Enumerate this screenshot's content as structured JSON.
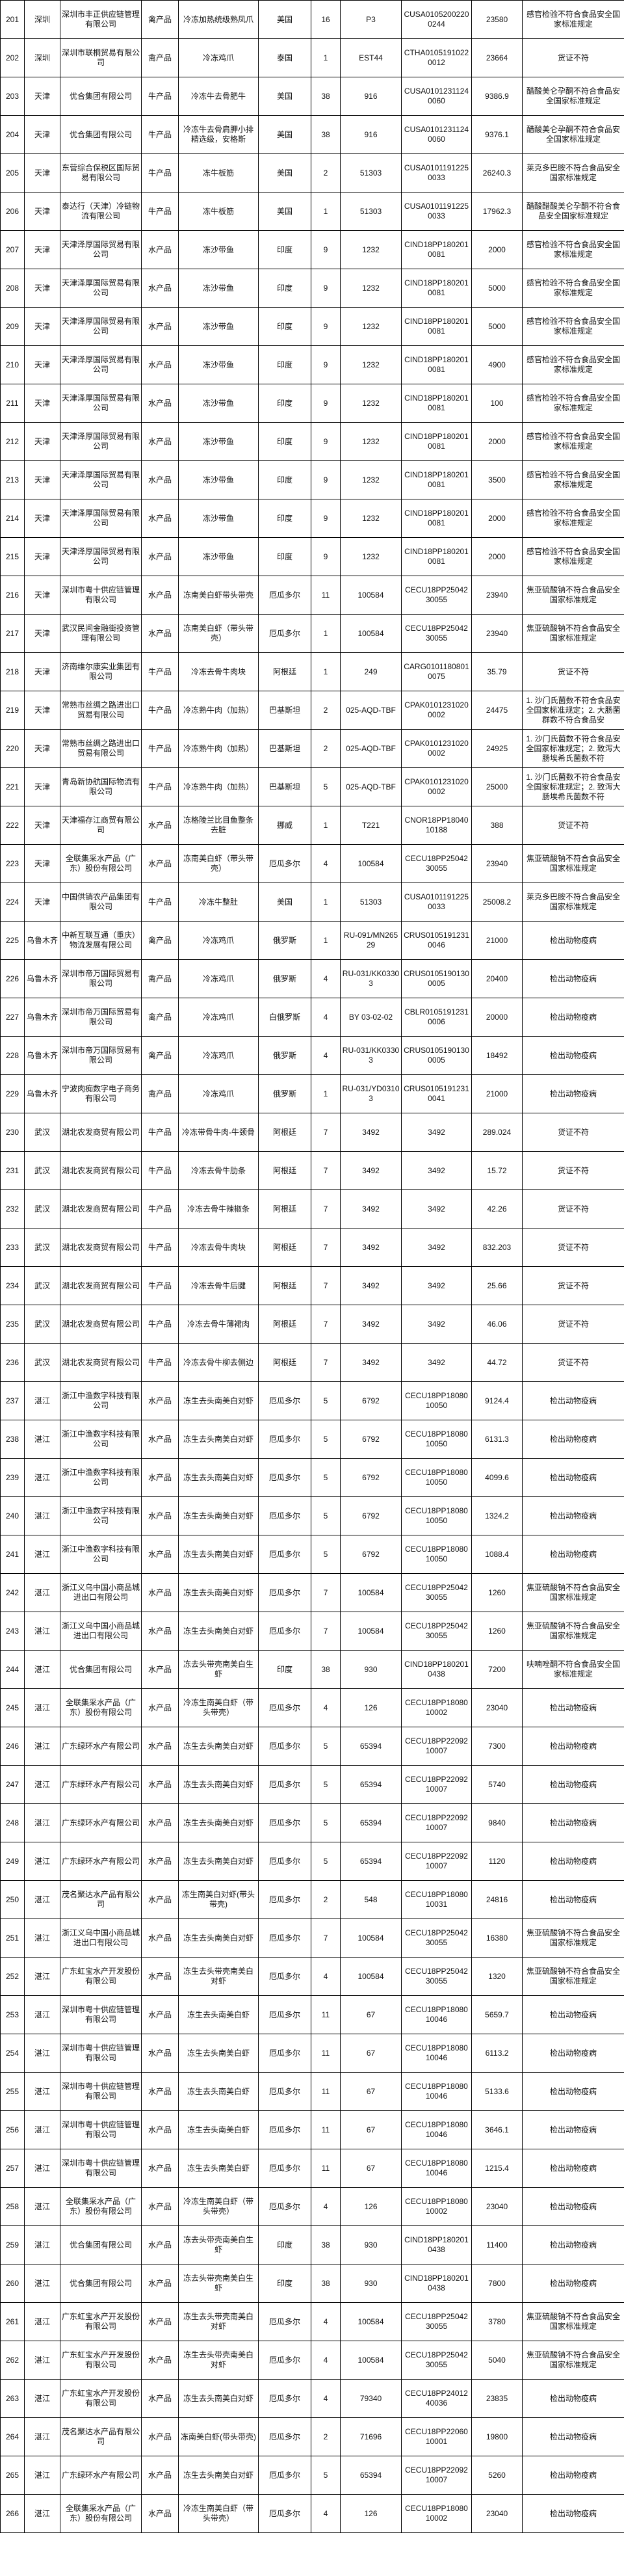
{
  "table": {
    "rows": [
      [
        "201",
        "深圳",
        "深圳市丰正供应链管理有限公司",
        "禽产品",
        "冷冻加热统级熟凤爪",
        "美国",
        "16",
        "P3",
        "CUSA01052002200244",
        "23580",
        "感官检验不符合食品安全国家标准规定"
      ],
      [
        "202",
        "深圳",
        "深圳市联桐贸易有限公司",
        "禽产品",
        "冷冻鸡爪",
        "泰国",
        "1",
        "EST44",
        "CTHA01051910220012",
        "23664",
        "货证不符"
      ],
      [
        "203",
        "天津",
        "优合集团有限公司",
        "牛产品",
        "冷冻牛去骨肥牛",
        "美国",
        "38",
        "916",
        "CUSA01012311240060",
        "9386.9",
        "醋酸美仑孕酮不符合食品安全国家标准规定"
      ],
      [
        "204",
        "天津",
        "优合集团有限公司",
        "牛产品",
        "冷冻牛去骨肩胛小排精选级，安格斯",
        "美国",
        "38",
        "916",
        "CUSA01012311240060",
        "9376.1",
        "醋酸美仑孕酮不符合食品安全国家标准规定"
      ],
      [
        "205",
        "天津",
        "东营综合保税区国际贸易有限公司",
        "牛产品",
        "冻牛板筋",
        "美国",
        "2",
        "51303",
        "CUSA01011912250033",
        "26240.3",
        "莱克多巴胺不符合食品安全国家标准规定"
      ],
      [
        "206",
        "天津",
        "泰达行（天津）冷链物流有限公司",
        "牛产品",
        "冻牛板筋",
        "美国",
        "1",
        "51303",
        "CUSA01011912250033",
        "17962.3",
        "醋酸醋酸美仑孕酮不符合食品安全国家标准规定"
      ],
      [
        "207",
        "天津",
        "天津泽厚国际贸易有限公司",
        "水产品",
        "冻沙带鱼",
        "印度",
        "9",
        "1232",
        "CIND18PP1802010081",
        "2000",
        "感官检验不符合食品安全国家标准规定"
      ],
      [
        "208",
        "天津",
        "天津泽厚国际贸易有限公司",
        "水产品",
        "冻沙带鱼",
        "印度",
        "9",
        "1232",
        "CIND18PP1802010081",
        "5000",
        "感官检验不符合食品安全国家标准规定"
      ],
      [
        "209",
        "天津",
        "天津泽厚国际贸易有限公司",
        "水产品",
        "冻沙带鱼",
        "印度",
        "9",
        "1232",
        "CIND18PP1802010081",
        "5000",
        "感官检验不符合食品安全国家标准规定"
      ],
      [
        "210",
        "天津",
        "天津泽厚国际贸易有限公司",
        "水产品",
        "冻沙带鱼",
        "印度",
        "9",
        "1232",
        "CIND18PP1802010081",
        "4900",
        "感官检验不符合食品安全国家标准规定"
      ],
      [
        "211",
        "天津",
        "天津泽厚国际贸易有限公司",
        "水产品",
        "冻沙带鱼",
        "印度",
        "9",
        "1232",
        "CIND18PP1802010081",
        "100",
        "感官检验不符合食品安全国家标准规定"
      ],
      [
        "212",
        "天津",
        "天津泽厚国际贸易有限公司",
        "水产品",
        "冻沙带鱼",
        "印度",
        "9",
        "1232",
        "CIND18PP1802010081",
        "2000",
        "感官检验不符合食品安全国家标准规定"
      ],
      [
        "213",
        "天津",
        "天津泽厚国际贸易有限公司",
        "水产品",
        "冻沙带鱼",
        "印度",
        "9",
        "1232",
        "CIND18PP1802010081",
        "3500",
        "感官检验不符合食品安全国家标准规定"
      ],
      [
        "214",
        "天津",
        "天津泽厚国际贸易有限公司",
        "水产品",
        "冻沙带鱼",
        "印度",
        "9",
        "1232",
        "CIND18PP1802010081",
        "2000",
        "感官检验不符合食品安全国家标准规定"
      ],
      [
        "215",
        "天津",
        "天津泽厚国际贸易有限公司",
        "水产品",
        "冻沙带鱼",
        "印度",
        "9",
        "1232",
        "CIND18PP1802010081",
        "2000",
        "感官检验不符合食品安全国家标准规定"
      ],
      [
        "216",
        "天津",
        "深圳市粤十供应链管理有限公司",
        "水产品",
        "冻南美白虾带头带壳",
        "厄瓜多尔",
        "11",
        "100584",
        "CECU18PP2504230055",
        "23940",
        "焦亚硫酸钠不符合食品安全国家标准规定"
      ],
      [
        "217",
        "天津",
        "武汉民间金融街投资管理有限公司",
        "水产品",
        "冻南美白虾（带头带壳）",
        "厄瓜多尔",
        "1",
        "100584",
        "CECU18PP2504230055",
        "23940",
        "焦亚硫酸钠不符合食品安全国家标准规定"
      ],
      [
        "218",
        "天津",
        "济南维尔康实业集团有限公司",
        "牛产品",
        "冷冻去骨牛肉块",
        "阿根廷",
        "1",
        "249",
        "CARG01011808010075",
        "35.79",
        "货证不符"
      ],
      [
        "219",
        "天津",
        "常熟市丝绸之路进出口贸易有限公司",
        "牛产品",
        "冷冻熟牛肉（加热）",
        "巴基斯坦",
        "2",
        "025-AQD-TBF",
        "CPAK01012310200002",
        "24475",
        "1. 沙门氏菌数不符合食品安全国家标准规定；2. 大肠菌群数不符合食品安"
      ],
      [
        "220",
        "天津",
        "常熟市丝绸之路进出口贸易有限公司",
        "牛产品",
        "冷冻熟牛肉（加热）",
        "巴基斯坦",
        "2",
        "025-AQD-TBF",
        "CPAK01012310200002",
        "24925",
        "1. 沙门氏菌数不符合食品安全国家标准规定；2. 致泻大肠埃希氏菌数不符"
      ],
      [
        "221",
        "天津",
        "青岛新协航国际物流有限公司",
        "牛产品",
        "冷冻熟牛肉（加热）",
        "巴基斯坦",
        "5",
        "025-AQD-TBF",
        "CPAK01012310200002",
        "25000",
        "1. 沙门氏菌数不符合食品安全国家标准规定；2. 致泻大肠埃希氏菌数不符"
      ],
      [
        "222",
        "天津",
        "天津福存江商贸有限公司",
        "水产品",
        "冻格陵兰比目鱼整条去脏",
        "挪威",
        "1",
        "T221",
        "CNOR18PP1804010188",
        "388",
        "货证不符"
      ],
      [
        "223",
        "天津",
        "全联集采水产品（广东）股份有限公司",
        "水产品",
        "冻南美白虾（带头带壳）",
        "厄瓜多尔",
        "4",
        "100584",
        "CECU18PP2504230055",
        "23940",
        "焦亚硫酸钠不符合食品安全国家标准规定"
      ],
      [
        "224",
        "天津",
        "中国供销农产品集团有限公司",
        "牛产品",
        "冷冻牛整肚",
        "美国",
        "1",
        "51303",
        "CUSA01011912250033",
        "25008.2",
        "莱克多巴胺不符合食品安全国家标准规定"
      ],
      [
        "225",
        "乌鲁木齐",
        "中新互联互通（重庆）物流发展有限公司",
        "禽产品",
        "冷冻鸡爪",
        "俄罗斯",
        "1",
        "RU-091/MN26529",
        "CRUS01051912310046",
        "21000",
        "检出动物疫病"
      ],
      [
        "226",
        "乌鲁木齐",
        "深圳市帝万国际贸易有限公司",
        "禽产品",
        "冷冻鸡爪",
        "俄罗斯",
        "4",
        "RU-031/KK03303",
        "CRUS01051901300005",
        "20400",
        "检出动物疫病"
      ],
      [
        "227",
        "乌鲁木齐",
        "深圳市帝万国际贸易有限公司",
        "禽产品",
        "冷冻鸡爪",
        "白俄罗斯",
        "4",
        "BY 03-02-02",
        "CBLR01051912310006",
        "20000",
        "检出动物疫病"
      ],
      [
        "228",
        "乌鲁木齐",
        "深圳市帝万国际贸易有限公司",
        "禽产品",
        "冷冻鸡爪",
        "俄罗斯",
        "4",
        "RU-031/KK03303",
        "CRUS01051901300005",
        "18492",
        "检出动物疫病"
      ],
      [
        "229",
        "乌鲁木齐",
        "宁波肉痴数字电子商务有限公司",
        "禽产品",
        "冷冻鸡爪",
        "俄罗斯",
        "1",
        "RU-031/YD03103",
        "CRUS01051912310041",
        "21000",
        "检出动物疫病"
      ],
      [
        "230",
        "武汉",
        "湖北农发商贸有限公司",
        "牛产品",
        "冷冻带骨牛肉-牛颈骨",
        "阿根廷",
        "7",
        "3492",
        "3492",
        "289.024",
        "货证不符"
      ],
      [
        "231",
        "武汉",
        "湖北农发商贸有限公司",
        "牛产品",
        "冷冻去骨牛肋条",
        "阿根廷",
        "7",
        "3492",
        "3492",
        "15.72",
        "货证不符"
      ],
      [
        "232",
        "武汉",
        "湖北农发商贸有限公司",
        "牛产品",
        "冷冻去骨牛辣椒条",
        "阿根廷",
        "7",
        "3492",
        "3492",
        "42.26",
        "货证不符"
      ],
      [
        "233",
        "武汉",
        "湖北农发商贸有限公司",
        "牛产品",
        "冷冻去骨牛肉块",
        "阿根廷",
        "7",
        "3492",
        "3492",
        "832.203",
        "货证不符"
      ],
      [
        "234",
        "武汉",
        "湖北农发商贸有限公司",
        "牛产品",
        "冷冻去骨牛后腱",
        "阿根廷",
        "7",
        "3492",
        "3492",
        "25.66",
        "货证不符"
      ],
      [
        "235",
        "武汉",
        "湖北农发商贸有限公司",
        "牛产品",
        "冷冻去骨牛薄裙肉",
        "阿根廷",
        "7",
        "3492",
        "3492",
        "46.06",
        "货证不符"
      ],
      [
        "236",
        "武汉",
        "湖北农发商贸有限公司",
        "牛产品",
        "冷冻去骨牛柳去侧边",
        "阿根廷",
        "7",
        "3492",
        "3492",
        "44.72",
        "货证不符"
      ],
      [
        "237",
        "湛江",
        "浙江中渔数字科技有限公司",
        "水产品",
        "冻生去头南美白对虾",
        "厄瓜多尔",
        "5",
        "6792",
        "CECU18PP1808010050",
        "9124.4",
        "检出动物疫病"
      ],
      [
        "238",
        "湛江",
        "浙江中渔数字科技有限公司",
        "水产品",
        "冻生去头南美白对虾",
        "厄瓜多尔",
        "5",
        "6792",
        "CECU18PP1808010050",
        "6131.3",
        "检出动物疫病"
      ],
      [
        "239",
        "湛江",
        "浙江中渔数字科技有限公司",
        "水产品",
        "冻生去头南美白对虾",
        "厄瓜多尔",
        "5",
        "6792",
        "CECU18PP1808010050",
        "4099.6",
        "检出动物疫病"
      ],
      [
        "240",
        "湛江",
        "浙江中渔数字科技有限公司",
        "水产品",
        "冻生去头南美白对虾",
        "厄瓜多尔",
        "5",
        "6792",
        "CECU18PP1808010050",
        "1324.2",
        "检出动物疫病"
      ],
      [
        "241",
        "湛江",
        "浙江中渔数字科技有限公司",
        "水产品",
        "冻生去头南美白对虾",
        "厄瓜多尔",
        "5",
        "6792",
        "CECU18PP1808010050",
        "1088.4",
        "检出动物疫病"
      ],
      [
        "242",
        "湛江",
        "浙江义乌中国小商品城进出口有限公司",
        "水产品",
        "冻生去头南美白对虾",
        "厄瓜多尔",
        "7",
        "100584",
        "CECU18PP2504230055",
        "1260",
        "焦亚硫酸钠不符合食品安全国家标准规定"
      ],
      [
        "243",
        "湛江",
        "浙江义乌中国小商品城进出口有限公司",
        "水产品",
        "冻生去头南美白对虾",
        "厄瓜多尔",
        "7",
        "100584",
        "CECU18PP2504230055",
        "1260",
        "焦亚硫酸钠不符合食品安全国家标准规定"
      ],
      [
        "244",
        "湛江",
        "优合集团有限公司",
        "水产品",
        "冻去头带壳南美白生虾",
        "印度",
        "38",
        "930",
        "CIND18PP1802010438",
        "7200",
        "呋喃唑酮不符合食品安全国家标准规定"
      ],
      [
        "245",
        "湛江",
        "全联集采水产品（广东）股份有限公司",
        "水产品",
        "冷冻生南美白虾（带头带壳）",
        "厄瓜多尔",
        "4",
        "126",
        "CECU18PP1808010002",
        "23040",
        "检出动物疫病"
      ],
      [
        "246",
        "湛江",
        "广东绿环水产有限公司",
        "水产品",
        "冻生去头南美白对虾",
        "厄瓜多尔",
        "5",
        "65394",
        "CECU18PP2209210007",
        "7300",
        "检出动物疫病"
      ],
      [
        "247",
        "湛江",
        "广东绿环水产有限公司",
        "水产品",
        "冻生去头南美白对虾",
        "厄瓜多尔",
        "5",
        "65394",
        "CECU18PP2209210007",
        "5740",
        "检出动物疫病"
      ],
      [
        "248",
        "湛江",
        "广东绿环水产有限公司",
        "水产品",
        "冻生去头南美白对虾",
        "厄瓜多尔",
        "5",
        "65394",
        "CECU18PP2209210007",
        "9840",
        "检出动物疫病"
      ],
      [
        "249",
        "湛江",
        "广东绿环水产有限公司",
        "水产品",
        "冻生去头南美白对虾",
        "厄瓜多尔",
        "5",
        "65394",
        "CECU18PP2209210007",
        "1120",
        "检出动物疫病"
      ],
      [
        "250",
        "湛江",
        "茂名聚达水产品有限公司",
        "水产品",
        "冻生南美白对虾(带头带壳)",
        "厄瓜多尔",
        "2",
        "548",
        "CECU18PP1808010031",
        "24816",
        "检出动物疫病"
      ],
      [
        "251",
        "湛江",
        "浙江义乌中国小商品城进出口有限公司",
        "水产品",
        "冻生去头南美白对虾",
        "厄瓜多尔",
        "7",
        "100584",
        "CECU18PP2504230055",
        "16380",
        "焦亚硫酸钠不符合食品安全国家标准规定"
      ],
      [
        "252",
        "湛江",
        "广东虹宝水产开发股份有限公司",
        "水产品",
        "冻生去头带壳南美白对虾",
        "厄瓜多尔",
        "4",
        "100584",
        "CECU18PP2504230055",
        "1320",
        "焦亚硫酸钠不符合食品安全国家标准规定"
      ],
      [
        "253",
        "湛江",
        "深圳市粤十供应链管理有限公司",
        "水产品",
        "冻生去头南美白虾",
        "厄瓜多尔",
        "11",
        "67",
        "CECU18PP1808010046",
        "5659.7",
        "检出动物疫病"
      ],
      [
        "254",
        "湛江",
        "深圳市粤十供应链管理有限公司",
        "水产品",
        "冻生去头南美白虾",
        "厄瓜多尔",
        "11",
        "67",
        "CECU18PP1808010046",
        "6113.2",
        "检出动物疫病"
      ],
      [
        "255",
        "湛江",
        "深圳市粤十供应链管理有限公司",
        "水产品",
        "冻生去头南美白虾",
        "厄瓜多尔",
        "11",
        "67",
        "CECU18PP1808010046",
        "5133.6",
        "检出动物疫病"
      ],
      [
        "256",
        "湛江",
        "深圳市粤十供应链管理有限公司",
        "水产品",
        "冻生去头南美白虾",
        "厄瓜多尔",
        "11",
        "67",
        "CECU18PP1808010046",
        "3646.1",
        "检出动物疫病"
      ],
      [
        "257",
        "湛江",
        "深圳市粤十供应链管理有限公司",
        "水产品",
        "冻生去头南美白虾",
        "厄瓜多尔",
        "11",
        "67",
        "CECU18PP1808010046",
        "1215.4",
        "检出动物疫病"
      ],
      [
        "258",
        "湛江",
        "全联集采水产品（广东）股份有限公司",
        "水产品",
        "冷冻生南美白虾（带头带壳）",
        "厄瓜多尔",
        "4",
        "126",
        "CECU18PP1808010002",
        "23040",
        "检出动物疫病"
      ],
      [
        "259",
        "湛江",
        "优合集团有限公司",
        "水产品",
        "冻去头带壳南美白生虾",
        "印度",
        "38",
        "930",
        "CIND18PP1802010438",
        "11400",
        "检出动物疫病"
      ],
      [
        "260",
        "湛江",
        "优合集团有限公司",
        "水产品",
        "冻去头带壳南美白生虾",
        "印度",
        "38",
        "930",
        "CIND18PP1802010438",
        "7800",
        "检出动物疫病"
      ],
      [
        "261",
        "湛江",
        "广东虹宝水产开发股份有限公司",
        "水产品",
        "冻生去头带壳南美白对虾",
        "厄瓜多尔",
        "4",
        "100584",
        "CECU18PP2504230055",
        "3780",
        "焦亚硫酸钠不符合食品安全国家标准规定"
      ],
      [
        "262",
        "湛江",
        "广东虹宝水产开发股份有限公司",
        "水产品",
        "冻生去头带壳南美白对虾",
        "厄瓜多尔",
        "4",
        "100584",
        "CECU18PP2504230055",
        "5040",
        "焦亚硫酸钠不符合食品安全国家标准规定"
      ],
      [
        "263",
        "湛江",
        "广东虹宝水产开发股份有限公司",
        "水产品",
        "冻生去头南美白对虾",
        "厄瓜多尔",
        "4",
        "79340",
        "CECU18PP2401240036",
        "23835",
        "检出动物疫病"
      ],
      [
        "264",
        "湛江",
        "茂名聚达水产品有限公司",
        "水产品",
        "冻南美白虾(带头带壳)",
        "厄瓜多尔",
        "2",
        "71696",
        "CECU18PP2206010001",
        "19800",
        "检出动物疫病"
      ],
      [
        "265",
        "湛江",
        "广东绿环水产有限公司",
        "水产品",
        "冻生去头南美白对虾",
        "厄瓜多尔",
        "5",
        "65394",
        "CECU18PP2209210007",
        "5260",
        "检出动物疫病"
      ],
      [
        "266",
        "湛江",
        "全联集采水产品（广东）股份有限公司",
        "水产品",
        "冷冻生南美白虾（带头带壳）",
        "厄瓜多尔",
        "4",
        "126",
        "CECU18PP1808010002",
        "23040",
        "检出动物疫病"
      ]
    ]
  }
}
